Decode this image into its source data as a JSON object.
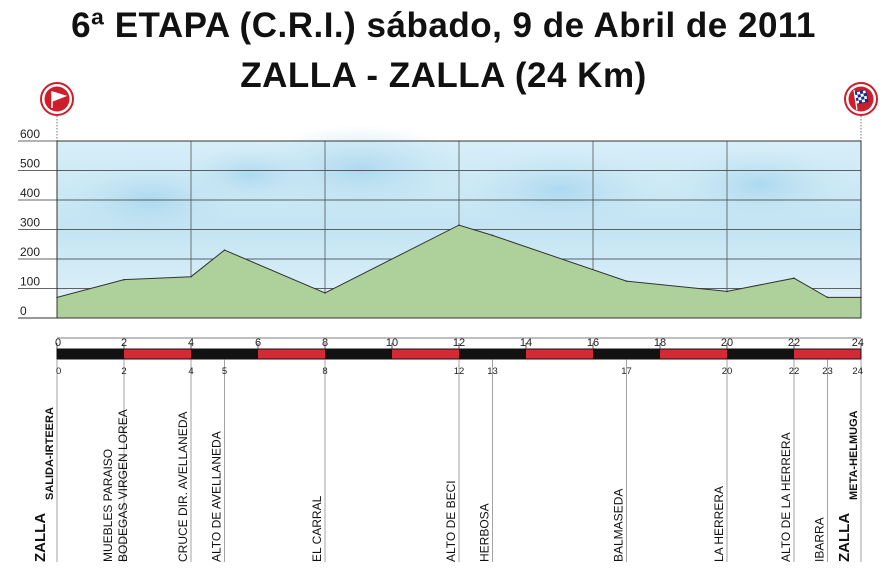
{
  "header": {
    "title_line1": "6ª ETAPA (C.R.I.) sábado, 9 de Abril de 2011",
    "title_line2": "ZALLA - ZALLA (24 Km)"
  },
  "chart_data": {
    "type": "area",
    "xlim": [
      0,
      24
    ],
    "ylim": [
      0,
      600
    ],
    "y_ticks": [
      "0",
      "100",
      "200",
      "300",
      "400",
      "500",
      "600"
    ],
    "x_ticks": [
      "0",
      "2",
      "4",
      "6",
      "8",
      "10",
      "12",
      "14",
      "16",
      "18",
      "20",
      "22",
      "24"
    ],
    "x": [
      0,
      2,
      4,
      5,
      8,
      12,
      13,
      17,
      20,
      22,
      23,
      24
    ],
    "y": [
      70,
      130,
      140,
      230,
      85,
      315,
      280,
      125,
      90,
      135,
      70,
      70
    ],
    "fill_color": "#aed19b",
    "grid": true,
    "waypoints": [
      {
        "km": 0,
        "km_label": "0",
        "name": "ZALLA",
        "sub": "SALIDA-IRTEERA",
        "bold": true
      },
      {
        "km": 2,
        "km_label": "2",
        "name": "MUEBLES PARAISO",
        "sub": "BODEGAS VIRGEN LOREA",
        "bold": false
      },
      {
        "km": 4,
        "km_label": "4",
        "name": "CRUCE DIR. AVELLANEDA",
        "sub": "",
        "bold": false
      },
      {
        "km": 5,
        "km_label": "5",
        "name": "ALTO DE AVELLANEDA",
        "sub": "",
        "bold": false
      },
      {
        "km": 8,
        "km_label": "8",
        "name": "EL CARRAL",
        "sub": "",
        "bold": false
      },
      {
        "km": 12,
        "km_label": "12",
        "name": "ALTO DE BECI",
        "sub": "",
        "bold": false
      },
      {
        "km": 13,
        "km_label": "13",
        "name": "HERBOSA",
        "sub": "",
        "bold": false
      },
      {
        "km": 17,
        "km_label": "17",
        "name": "BALMASEDA",
        "sub": "",
        "bold": false
      },
      {
        "km": 20,
        "km_label": "20",
        "name": "LA HERRERA",
        "sub": "",
        "bold": false
      },
      {
        "km": 22,
        "km_label": "22",
        "name": "ALTO DE LA HERRERA",
        "sub": "",
        "bold": false
      },
      {
        "km": 23,
        "km_label": "23",
        "name": "IBARRA",
        "sub": "",
        "bold": false
      },
      {
        "km": 24,
        "km_label": "24",
        "name": "ZALLA",
        "sub": "META-HELMUGA",
        "bold": true
      }
    ]
  }
}
